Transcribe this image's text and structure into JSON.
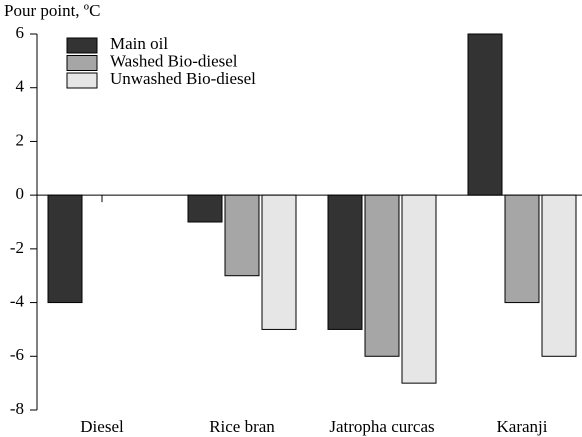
{
  "chart_data": {
    "type": "bar",
    "y_label": "Pour point, ºC",
    "categories": [
      "Diesel",
      "Rice bran",
      "Jatropha curcas",
      "Karanji"
    ],
    "series": [
      {
        "name": "Main oil",
        "color": "#333333",
        "values": [
          -4,
          -1,
          -5,
          6
        ]
      },
      {
        "name": "Washed Bio-diesel",
        "color": "#a6a6a6",
        "values": [
          0,
          -3,
          -6,
          -4
        ]
      },
      {
        "name": "Unwashed Bio-diesel",
        "color": "#e6e6e6",
        "values": [
          0,
          -5,
          -7,
          -6
        ]
      }
    ],
    "ylim": [
      -8,
      6
    ],
    "yticks": [
      -8,
      -6,
      -4,
      -2,
      0,
      2,
      4,
      6
    ],
    "legend": "upper left"
  }
}
